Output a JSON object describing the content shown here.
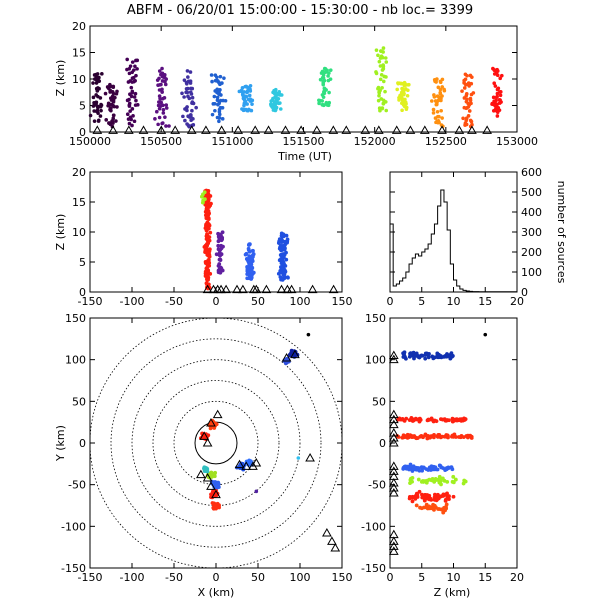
{
  "header": {
    "title": "ABFM - 06/20/01 15:00:00 - 15:30:00 - nb loc.=   3399"
  },
  "chart_data": [
    {
      "type": "scatter",
      "panel": "time-height",
      "xlabel": "Time (UT)",
      "ylabel": "Z (km)",
      "xlim": [
        150000,
        153000
      ],
      "ylim": [
        0,
        20
      ],
      "xticks": [
        150000,
        150500,
        151000,
        151500,
        152000,
        152500,
        153000
      ],
      "yticks": [
        0,
        5,
        10,
        15,
        20
      ],
      "clusters": [
        {
          "x": 150050,
          "zmin": 2,
          "zmax": 11,
          "color": "#2a0030"
        },
        {
          "x": 150150,
          "zmin": 1,
          "zmax": 9,
          "color": "#3a0040"
        },
        {
          "x": 150300,
          "zmin": 1,
          "zmax": 14,
          "color": "#440055"
        },
        {
          "x": 150500,
          "zmin": 1,
          "zmax": 12,
          "color": "#5b1080"
        },
        {
          "x": 150700,
          "zmin": 1,
          "zmax": 12,
          "color": "#4030a0"
        },
        {
          "x": 150900,
          "zmin": 2,
          "zmax": 11,
          "color": "#2060d0"
        },
        {
          "x": 151100,
          "zmin": 4,
          "zmax": 9,
          "color": "#30a0f0"
        },
        {
          "x": 151300,
          "zmin": 4,
          "zmax": 8,
          "color": "#30c8e0"
        },
        {
          "x": 151650,
          "zmin": 5,
          "zmax": 12,
          "color": "#30e080"
        },
        {
          "x": 152050,
          "zmin": 4,
          "zmax": 16,
          "color": "#a0f020"
        },
        {
          "x": 152200,
          "zmin": 4,
          "zmax": 10,
          "color": "#e0f020"
        },
        {
          "x": 152450,
          "zmin": 1,
          "zmax": 10,
          "color": "#ff9010"
        },
        {
          "x": 152650,
          "zmin": 1,
          "zmax": 11,
          "color": "#ff5010"
        },
        {
          "x": 152850,
          "zmin": 3,
          "zmax": 12,
          "color": "#ff1010"
        }
      ]
    },
    {
      "type": "scatter",
      "panel": "x-height",
      "ylabel": "Z (km)",
      "xlim": [
        -150,
        150
      ],
      "ylim": [
        0,
        20
      ],
      "xticks": [
        -150,
        -100,
        -50,
        0,
        50,
        100,
        150
      ],
      "yticks": [
        0,
        5,
        10,
        15,
        20
      ]
    },
    {
      "type": "line",
      "panel": "height-histogram",
      "ylabel": "number of sources",
      "xlim": [
        0,
        20
      ],
      "ylim": [
        0,
        600
      ],
      "xticks": [
        0,
        5,
        10,
        15,
        20
      ],
      "yticks": [
        0,
        100,
        200,
        300,
        400,
        500,
        600
      ],
      "x": [
        0,
        0.5,
        1,
        1.5,
        2,
        2.5,
        3,
        3.5,
        4,
        4.5,
        5,
        5.5,
        6,
        6.5,
        7,
        7.5,
        8,
        8.5,
        9,
        9.5,
        10,
        10.5,
        11,
        11.5,
        12,
        12.5,
        13,
        13.5,
        14,
        20
      ],
      "y": [
        340,
        30,
        40,
        55,
        70,
        100,
        140,
        170,
        190,
        180,
        200,
        215,
        240,
        290,
        340,
        430,
        510,
        450,
        310,
        140,
        60,
        30,
        15,
        8,
        5,
        3,
        2,
        2,
        1,
        0
      ]
    },
    {
      "type": "scatter",
      "panel": "plan-view",
      "xlabel": "X (km)",
      "ylabel": "Y (km)",
      "xlim": [
        -150,
        150
      ],
      "ylim": [
        -150,
        150
      ],
      "xticks": [
        -150,
        -100,
        -50,
        0,
        50,
        100,
        150
      ],
      "yticks": [
        -150,
        -100,
        -50,
        0,
        50,
        100,
        150
      ],
      "range_rings_km": [
        25,
        50,
        75,
        100,
        125,
        150
      ],
      "clusters": [
        {
          "x": 92,
          "y": 107,
          "r": 6,
          "color": "#1020a0"
        },
        {
          "x": 84,
          "y": 99,
          "r": 4,
          "color": "#3050e0"
        },
        {
          "x": 30,
          "y": -28,
          "r": 6,
          "color": "#2050e0"
        },
        {
          "x": 40,
          "y": -24,
          "r": 5,
          "color": "#3070ff"
        },
        {
          "x": -6,
          "y": -38,
          "r": 6,
          "color": "#a0e020"
        },
        {
          "x": -12,
          "y": -32,
          "r": 4,
          "color": "#30c0c0"
        },
        {
          "x": 0,
          "y": -50,
          "r": 6,
          "color": "#3060f0"
        },
        {
          "x": -2,
          "y": -62,
          "r": 6,
          "color": "#ff2010"
        },
        {
          "x": 0,
          "y": -75,
          "r": 6,
          "color": "#ff3010"
        },
        {
          "x": -14,
          "y": 8,
          "r": 6,
          "color": "#ff2010"
        },
        {
          "x": -4,
          "y": 22,
          "r": 6,
          "color": "#ff4010"
        }
      ],
      "stations": [
        [
          -14,
          8
        ],
        [
          -6,
          24
        ],
        [
          2,
          34
        ],
        [
          -10,
          0
        ],
        [
          -18,
          -38
        ],
        [
          -10,
          -42
        ],
        [
          -6,
          -52
        ],
        [
          0,
          -62
        ],
        [
          28,
          -26
        ],
        [
          36,
          -28
        ],
        [
          44,
          -28
        ],
        [
          48,
          -24
        ],
        [
          84,
          102
        ],
        [
          94,
          106
        ],
        [
          112,
          -18
        ],
        [
          132,
          -108
        ],
        [
          138,
          -118
        ],
        [
          142,
          -126
        ]
      ]
    },
    {
      "type": "scatter",
      "panel": "height-y",
      "xlabel": "Z (km)",
      "xlim": [
        0,
        20
      ],
      "ylim": [
        -150,
        150
      ],
      "xticks": [
        0,
        5,
        10,
        15,
        20
      ],
      "yticks": [
        -150,
        -100,
        -50,
        0,
        50,
        100,
        150
      ]
    }
  ]
}
